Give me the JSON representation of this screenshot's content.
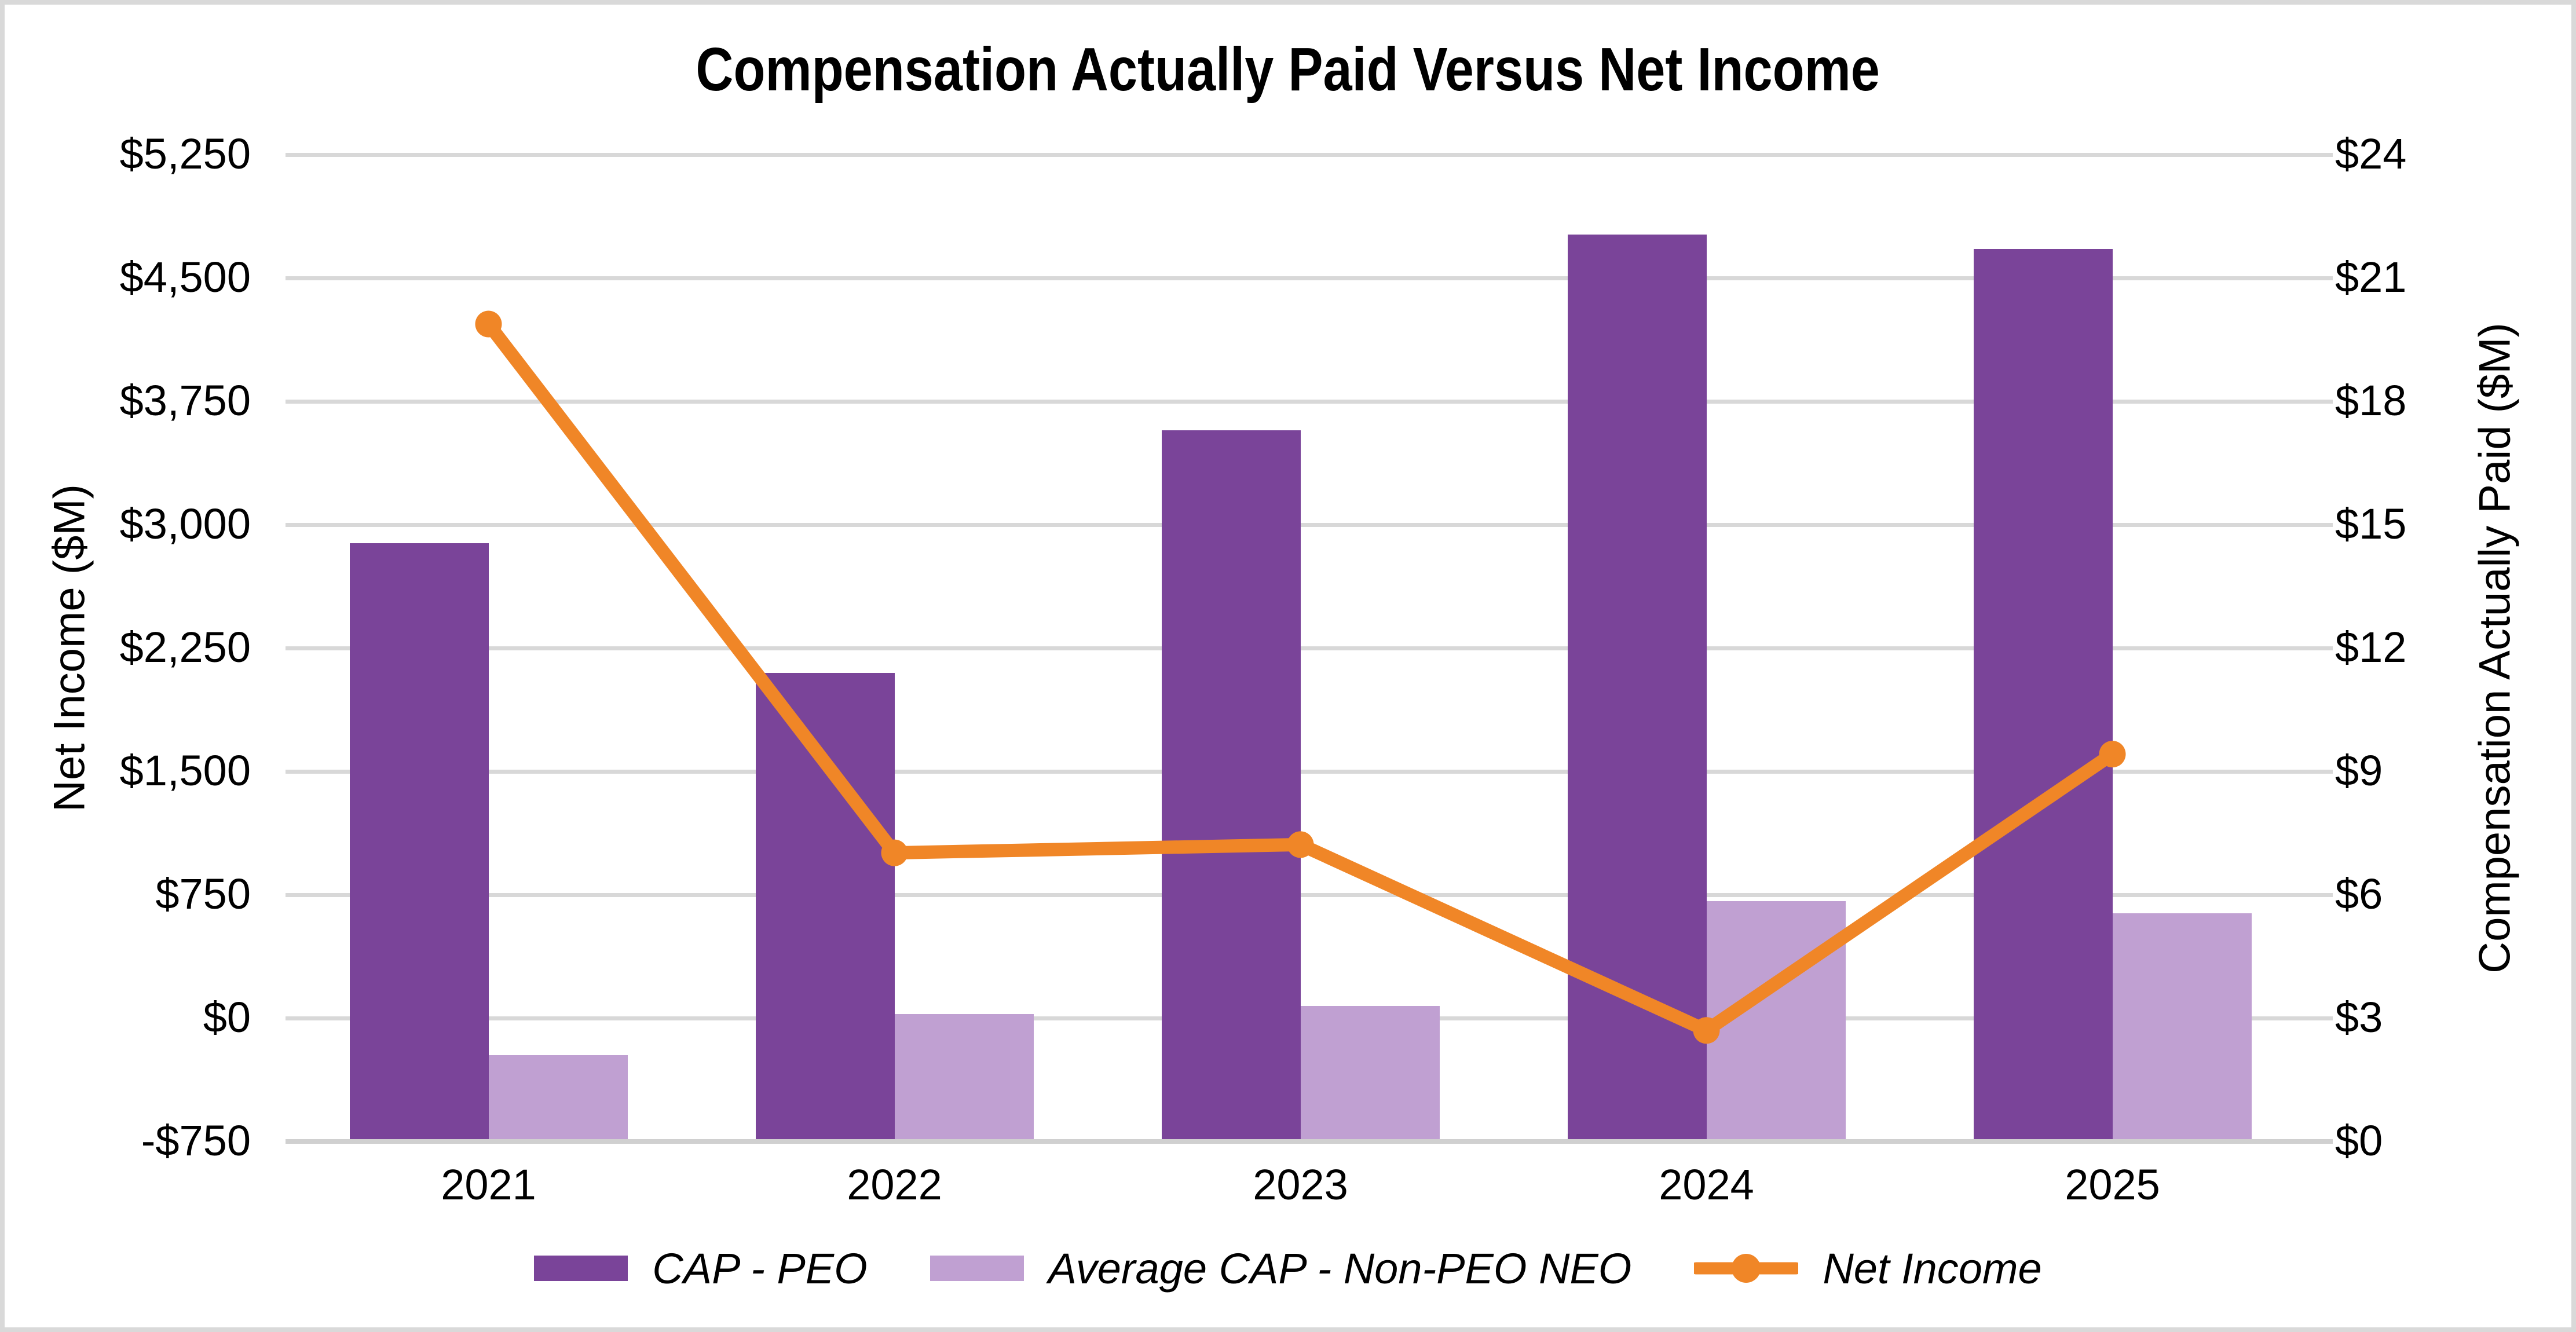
{
  "title": "Compensation Actually Paid Versus Net Income",
  "chart_data": {
    "type": "combo",
    "categories": [
      "2021",
      "2022",
      "2023",
      "2024",
      "2025"
    ],
    "series": [
      {
        "name": "CAP - PEO",
        "type": "bar",
        "axis": "right",
        "color": "#7A4499",
        "values": [
          14.55,
          11.4,
          17.3,
          22.05,
          21.7
        ]
      },
      {
        "name": "Average CAP - Non-PEO NEO",
        "type": "bar",
        "axis": "right",
        "color": "#C0A0D2",
        "values": [
          2.1,
          3.1,
          3.3,
          5.85,
          5.55
        ]
      },
      {
        "name": "Net Income",
        "type": "line",
        "axis": "left",
        "color": "#F08627",
        "values": [
          4220,
          1005,
          1055,
          -75,
          1605
        ]
      }
    ],
    "left_axis": {
      "label": "Net Income ($M)",
      "ticks": [
        "$5,250",
        "$4,500",
        "$3,750",
        "$3,000",
        "$2,250",
        "$1,500",
        "$750",
        "$0",
        "-$750"
      ],
      "min": -750,
      "max": 5250,
      "step": 750
    },
    "right_axis": {
      "label": "Compensation Actually Paid ($M)",
      "ticks": [
        "$24",
        "$21",
        "$18",
        "$15",
        "$12",
        "$9",
        "$6",
        "$3",
        "$0"
      ],
      "min": 0,
      "max": 24,
      "step": 3
    },
    "grid": true,
    "legend_position": "bottom",
    "colors": {
      "grid": "#D8D8D8",
      "axis_line": "#D0D0D0",
      "border": "#D9D9D9",
      "text": "#000000"
    }
  }
}
